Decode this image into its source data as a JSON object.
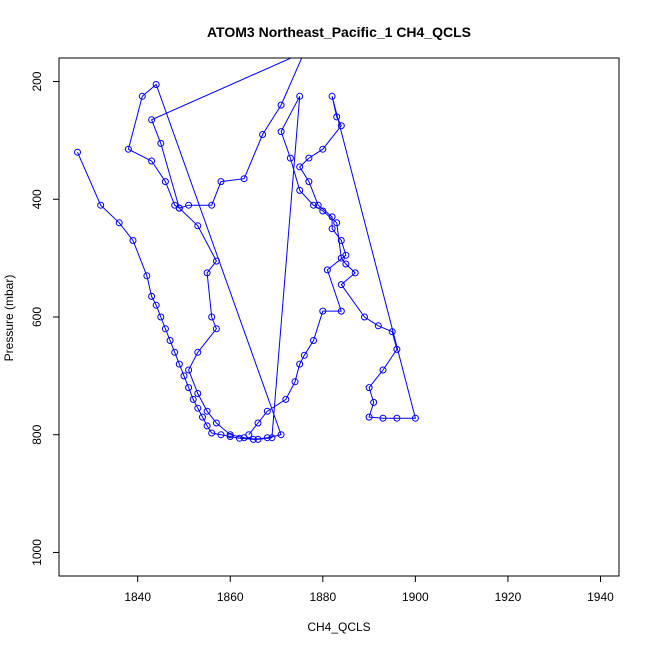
{
  "chart_data": {
    "type": "line",
    "title": "ATOM3 Northeast_Pacific_1 CH4_QCLS",
    "xlabel": "CH4_QCLS",
    "ylabel": "Pressure (mbar)",
    "xlim": [
      1823,
      1944
    ],
    "ylim": [
      1040,
      160
    ],
    "y_axis_inverted": true,
    "x_ticks": [
      1840,
      1860,
      1880,
      1900,
      1920,
      1940
    ],
    "y_ticks": [
      200,
      400,
      600,
      800,
      1000
    ],
    "grid": false,
    "legend": "none",
    "series": [
      {
        "color": "#0000ff",
        "marker": "open-circle",
        "points": [
          [
            1827,
            320
          ],
          [
            1832,
            410
          ],
          [
            1836,
            440
          ],
          [
            1839,
            470
          ],
          [
            1842,
            530
          ],
          [
            1843,
            565
          ],
          [
            1844,
            580
          ],
          [
            1845,
            600
          ],
          [
            1846,
            620
          ],
          [
            1847,
            640
          ],
          [
            1848,
            660
          ],
          [
            1849,
            680
          ],
          [
            1850,
            700
          ],
          [
            1851,
            720
          ],
          [
            1852,
            740
          ],
          [
            1853,
            755
          ],
          [
            1854,
            770
          ],
          [
            1855,
            785
          ],
          [
            1856,
            797
          ],
          [
            1858,
            800
          ],
          [
            1860,
            803
          ],
          [
            1862,
            806
          ],
          [
            1865,
            808
          ],
          [
            1868,
            805
          ],
          [
            1871,
            800
          ],
          [
            1844,
            205
          ],
          [
            1841,
            225
          ],
          [
            1838,
            315
          ],
          [
            1843,
            335
          ],
          [
            1846,
            370
          ],
          [
            1848,
            410
          ],
          [
            1849,
            415
          ],
          [
            1851,
            410
          ],
          [
            1856,
            410
          ],
          [
            1858,
            370
          ],
          [
            1863,
            365
          ],
          [
            1867,
            290
          ],
          [
            1871,
            240
          ],
          [
            1876,
            150
          ],
          [
            1843,
            265
          ],
          [
            1845,
            305
          ],
          [
            1849,
            415
          ],
          [
            1853,
            445
          ],
          [
            1857,
            505
          ],
          [
            1855,
            525
          ],
          [
            1856,
            600
          ],
          [
            1857,
            620
          ],
          [
            1853,
            660
          ],
          [
            1851,
            690
          ],
          [
            1853,
            730
          ],
          [
            1855,
            760
          ],
          [
            1857,
            780
          ],
          [
            1860,
            800
          ],
          [
            1863,
            805
          ],
          [
            1866,
            808
          ],
          [
            1869,
            805
          ],
          [
            1875,
            225
          ],
          [
            1871,
            285
          ],
          [
            1873,
            330
          ],
          [
            1875,
            385
          ],
          [
            1878,
            410
          ],
          [
            1880,
            420
          ],
          [
            1883,
            440
          ],
          [
            1884,
            500
          ],
          [
            1885,
            510
          ],
          [
            1887,
            525
          ],
          [
            1884,
            545
          ],
          [
            1889,
            600
          ],
          [
            1892,
            615
          ],
          [
            1895,
            625
          ],
          [
            1896,
            655
          ],
          [
            1893,
            690
          ],
          [
            1890,
            720
          ],
          [
            1891,
            745
          ],
          [
            1890,
            770
          ],
          [
            1893,
            772
          ],
          [
            1896,
            772
          ],
          [
            1900,
            772
          ],
          [
            1882,
            225
          ],
          [
            1883,
            260
          ],
          [
            1884,
            275
          ],
          [
            1880,
            315
          ],
          [
            1877,
            330
          ],
          [
            1875,
            345
          ],
          [
            1877,
            370
          ],
          [
            1879,
            410
          ],
          [
            1882,
            430
          ],
          [
            1882,
            450
          ],
          [
            1884,
            470
          ],
          [
            1885,
            495
          ],
          [
            1881,
            520
          ],
          [
            1884,
            590
          ],
          [
            1880,
            590
          ],
          [
            1878,
            640
          ],
          [
            1876,
            665
          ],
          [
            1875,
            680
          ],
          [
            1874,
            710
          ],
          [
            1872,
            740
          ],
          [
            1868,
            760
          ],
          [
            1866,
            780
          ],
          [
            1864,
            800
          ]
        ]
      }
    ]
  }
}
